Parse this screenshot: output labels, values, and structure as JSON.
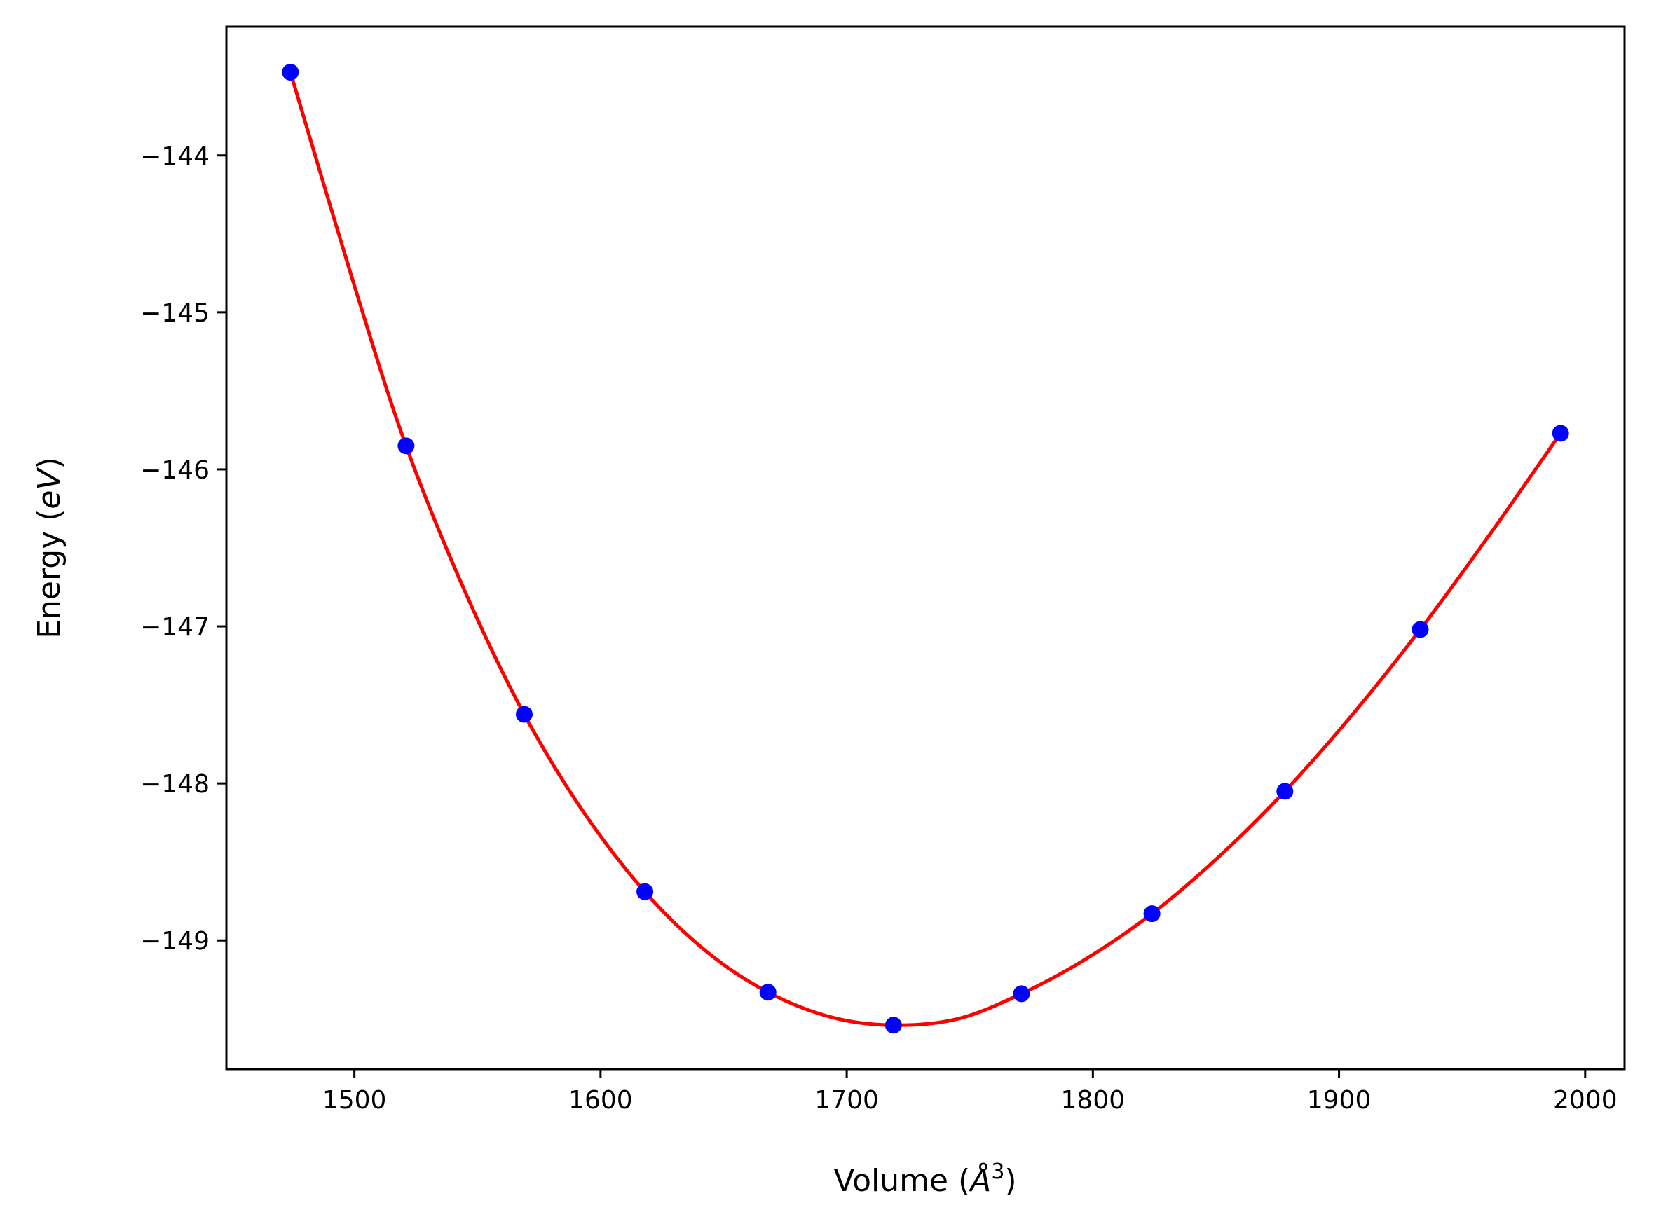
{
  "chart_data": {
    "type": "scatter",
    "title": "",
    "xlabel_parts": [
      "Volume (",
      "Å",
      "3",
      ")"
    ],
    "ylabel_parts": [
      "Energy (",
      "eV",
      ")"
    ],
    "xlim": [
      1448,
      2016
    ],
    "ylim": [
      -149.82,
      -143.18
    ],
    "xticks": [
      1500,
      1600,
      1700,
      1800,
      1900,
      2000
    ],
    "xtick_labels": [
      "1500",
      "1600",
      "1700",
      "1800",
      "1900",
      "2000"
    ],
    "yticks": [
      -144,
      -145,
      -146,
      -147,
      -148,
      -149
    ],
    "ytick_labels": [
      "−144",
      "−145",
      "−146",
      "−147",
      "−148",
      "−149"
    ],
    "grid": false,
    "series": [
      {
        "kind": "points",
        "color": "#0000ff",
        "x": [
          1474,
          1521,
          1569,
          1618,
          1668,
          1719,
          1771,
          1824,
          1878,
          1933,
          1990
        ],
        "y": [
          -143.47,
          -145.85,
          -147.56,
          -148.69,
          -149.33,
          -149.54,
          -149.34,
          -148.83,
          -148.05,
          -147.02,
          -145.77
        ]
      },
      {
        "kind": "fit-curve",
        "color": "#ff0000",
        "x": [
          1474,
          1500,
          1521,
          1545,
          1569,
          1593,
          1618,
          1643,
          1668,
          1694,
          1719,
          1745,
          1771,
          1797,
          1824,
          1851,
          1878,
          1905,
          1933,
          1961,
          1990
        ],
        "y": [
          -143.47,
          -144.83,
          -145.85,
          -146.78,
          -147.56,
          -148.18,
          -148.69,
          -149.07,
          -149.33,
          -149.49,
          -149.54,
          -149.5,
          -149.34,
          -149.12,
          -148.83,
          -148.47,
          -148.05,
          -147.57,
          -147.02,
          -146.42,
          -145.77
        ]
      }
    ]
  }
}
